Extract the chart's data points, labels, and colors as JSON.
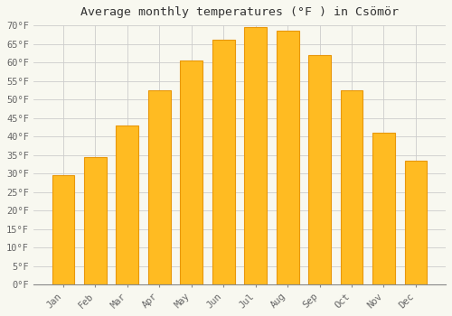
{
  "title": "Average monthly temperatures (°F ) in Csömör",
  "months": [
    "Jan",
    "Feb",
    "Mar",
    "Apr",
    "May",
    "Jun",
    "Jul",
    "Aug",
    "Sep",
    "Oct",
    "Nov",
    "Dec"
  ],
  "values": [
    29.5,
    34.5,
    43.0,
    52.5,
    60.5,
    66.0,
    69.5,
    68.5,
    62.0,
    52.5,
    41.0,
    33.5
  ],
  "bar_color_main": "#FFBB22",
  "bar_color_edge": "#E8970A",
  "background_color": "#f8f8f0",
  "plot_bg_color": "#f8f8f0",
  "ylim": [
    0,
    70
  ],
  "ytick_step": 5,
  "grid_color": "#cccccc",
  "tick_label_color": "#666666",
  "title_color": "#333333",
  "title_fontsize": 9.5,
  "tick_fontsize": 7.5,
  "bar_width": 0.7
}
